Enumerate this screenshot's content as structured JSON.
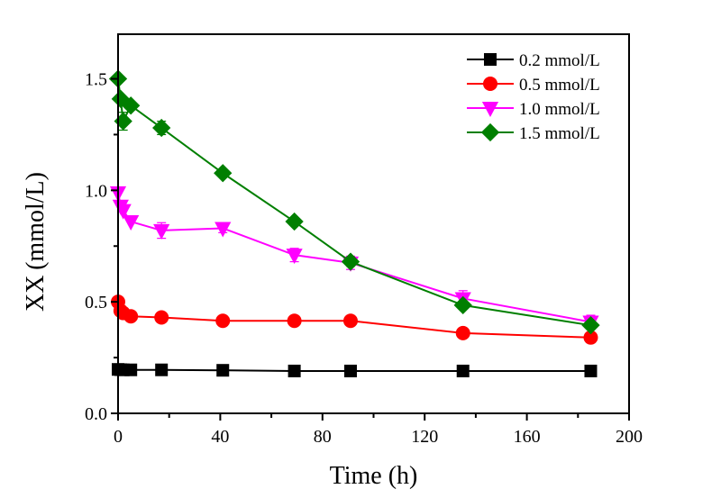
{
  "chart_data": {
    "type": "line",
    "title": "",
    "xlabel": "Time (h)",
    "ylabel": "XX (mmol/L)",
    "xlim": [
      0,
      200
    ],
    "ylim": [
      0,
      1.7
    ],
    "xticks": [
      0,
      40,
      80,
      120,
      160,
      200
    ],
    "xtick_labels": [
      "0",
      "40",
      "80",
      "120",
      "160",
      "200"
    ],
    "x_minor_ticks": [
      20,
      60,
      100,
      140,
      180
    ],
    "yticks": [
      0.0,
      0.5,
      1.0,
      1.5
    ],
    "ytick_labels": [
      "0.0",
      "0.5",
      "1.0",
      "1.5"
    ],
    "y_minor_ticks": [
      0.25,
      0.75,
      1.25
    ],
    "grid": false,
    "legend_position": "top-right",
    "series": [
      {
        "name": "0.2 mmol/L",
        "color": "#000000",
        "marker": "square",
        "x": [
          0,
          1,
          2,
          5,
          17,
          41,
          69,
          91,
          135,
          185
        ],
        "y": [
          0.197,
          0.196,
          0.195,
          0.195,
          0.195,
          0.193,
          0.19,
          0.19,
          0.19,
          0.19
        ],
        "err": [
          0,
          0,
          0,
          0,
          0,
          0,
          0,
          0,
          0,
          0
        ]
      },
      {
        "name": "0.5 mmol/L",
        "color": "#ff0000",
        "marker": "circle",
        "x": [
          0,
          1,
          2,
          5,
          17,
          41,
          69,
          91,
          135,
          185
        ],
        "y": [
          0.5,
          0.46,
          0.45,
          0.435,
          0.43,
          0.415,
          0.415,
          0.415,
          0.36,
          0.34
        ],
        "err": [
          0,
          0,
          0,
          0,
          0,
          0,
          0,
          0,
          0.02,
          0
        ]
      },
      {
        "name": "1.0 mmol/L",
        "color": "#ff00ff",
        "marker": "triangle-down",
        "x": [
          0,
          1,
          2,
          5,
          17,
          41,
          69,
          91,
          135,
          185
        ],
        "y": [
          0.99,
          0.93,
          0.91,
          0.86,
          0.82,
          0.83,
          0.71,
          0.675,
          0.515,
          0.41
        ],
        "err": [
          0,
          0,
          0,
          0,
          0.035,
          0.02,
          0.03,
          0.03,
          0.035,
          0.03
        ]
      },
      {
        "name": "1.5 mmol/L",
        "color": "#007f00",
        "marker": "diamond",
        "x": [
          0,
          1,
          2,
          5,
          17,
          41,
          69,
          91,
          135,
          185
        ],
        "y": [
          1.5,
          1.41,
          1.31,
          1.38,
          1.28,
          1.077,
          0.86,
          0.68,
          0.485,
          0.395
        ],
        "err": [
          0,
          0,
          0.04,
          0,
          0.03,
          0,
          0,
          0.02,
          0,
          0
        ]
      }
    ]
  }
}
